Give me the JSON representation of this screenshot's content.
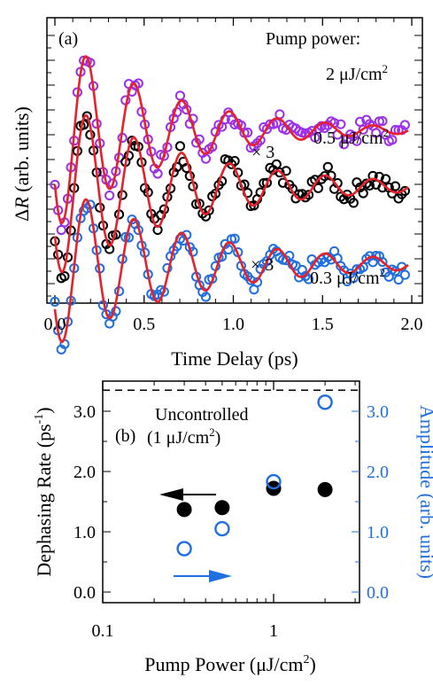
{
  "panel_a": {
    "label": "(a)",
    "legend_title": "Pump power:",
    "xlabel": "Time Delay (ps)",
    "ylabel": "ΔR (arb. units)",
    "multiplier_mid": "× 3",
    "multiplier_low": "× 3",
    "curve_labels": [
      "2 μJ/cm²",
      "0.5 μJ/cm²",
      "0.3 μJ/cm²"
    ]
  },
  "panel_b": {
    "label": "(b)",
    "xlabel": "Pump Power (μJ/cm²)",
    "ylabel_left": "Dephasing Rate (ps⁻¹)",
    "ylabel_right": "Amplitude (arb. units)",
    "uncontrolled_line1": "Uncontrolled",
    "uncontrolled_line2": "(1 μJ/cm²)"
  },
  "colors": {
    "purple": "#9b30e8",
    "black": "#000000",
    "blue": "#1f6fe0",
    "fit": "#e8202a",
    "axis_right": "#1f6fe0"
  },
  "chart_data": [
    {
      "type": "scatter",
      "panel": "a",
      "xlabel": "Time Delay (ps)",
      "ylabel": "ΔR (arb. units)",
      "xlim": [
        -0.05,
        2.0
      ],
      "xticks": [
        0.0,
        0.5,
        1.0,
        1.5,
        2.0
      ],
      "xtick_labels": [
        "0.0",
        "0.5",
        "1.0",
        "1.5",
        "2.0"
      ],
      "y_tick_labels_shown": false,
      "model": "oscillation with ~0.27 ps period and exponential damping",
      "series": [
        {
          "name": "2 μJ/cm²",
          "color": "#9b30e8",
          "offset": 2.0,
          "amplitude": 1.15,
          "period_ps": 0.268,
          "decay_rate": 1.7,
          "phase_rad": 2.15,
          "t_start": 0.0
        },
        {
          "name": "0.5 μJ/cm² (× 3)",
          "color": "#000000",
          "offset": 1.35,
          "amplitude": 1.05,
          "period_ps": 0.268,
          "decay_rate": 1.4,
          "phase_rad": 2.15,
          "t_start": 0.0
        },
        {
          "name": "0.3 μJ/cm² (× 3)",
          "color": "#1f6fe0",
          "offset": 0.45,
          "amplitude": 0.95,
          "period_ps": 0.268,
          "decay_rate": 1.35,
          "phase_rad": 2.15,
          "t_start": 0.0
        }
      ]
    },
    {
      "type": "scatter",
      "panel": "b",
      "xscale": "log",
      "xlabel": "Pump Power (μJ/cm²)",
      "ylabel": "Dephasing Rate (ps⁻¹)",
      "ylabel_right": "Amplitude (arb. units)",
      "xlim": [
        0.1,
        3.0
      ],
      "ylim": [
        -0.1,
        3.6
      ],
      "xtick_labels": [
        "0.1",
        "1"
      ],
      "ytick_labels": [
        "0.0",
        "1.0",
        "2.0",
        "3.0"
      ],
      "uncontrolled_level": 3.35,
      "series": [
        {
          "name": "Dephasing Rate",
          "marker": "filled-circle",
          "color": "#000000",
          "axis": "left",
          "x": [
            0.3,
            0.5,
            1.0,
            2.0
          ],
          "y": [
            1.37,
            1.4,
            1.72,
            1.7
          ]
        },
        {
          "name": "Amplitude",
          "marker": "open-circle",
          "color": "#1f6fe0",
          "axis": "right",
          "x": [
            0.3,
            0.5,
            1.0,
            2.0
          ],
          "y": [
            0.72,
            1.05,
            1.83,
            3.15
          ]
        }
      ]
    }
  ]
}
